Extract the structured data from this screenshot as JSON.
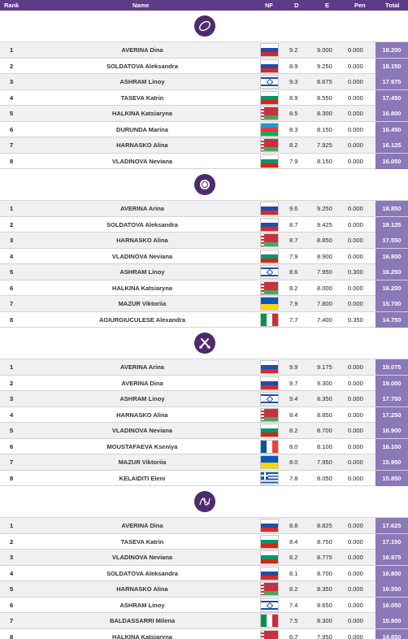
{
  "header": {
    "rank": "Rank",
    "name": "Name",
    "nf": "NF",
    "d": "D",
    "e": "E",
    "pen": "Pen",
    "total": "Total"
  },
  "colors": {
    "header_bg": "#5e3b86",
    "total_bg": "#8a78b8",
    "apparatus_bg": "#4c2b6e"
  },
  "sections": [
    {
      "apparatus_icon": "hoop-icon",
      "rows": [
        {
          "rank": "1",
          "name": "AVERINA Dina",
          "flag": "russia-flag",
          "d": "9.2",
          "e": "9.000",
          "pen": "0.000",
          "total": "18.200"
        },
        {
          "rank": "2",
          "name": "SOLDATOVA Aleksandra",
          "flag": "russia-flag",
          "d": "8.9",
          "e": "9.250",
          "pen": "0.000",
          "total": "18.150"
        },
        {
          "rank": "3",
          "name": "ASHRAM Linoy",
          "flag": "israel-flag",
          "d": "9.3",
          "e": "8.675",
          "pen": "0.000",
          "total": "17.975"
        },
        {
          "rank": "4",
          "name": "TASEVA Katrin",
          "flag": "bulgaria-flag",
          "d": "8.9",
          "e": "8.550",
          "pen": "0.000",
          "total": "17.450"
        },
        {
          "rank": "5",
          "name": "HALKINA Katsiaryna",
          "flag": "belarus-flag",
          "d": "8.5",
          "e": "8.300",
          "pen": "0.000",
          "total": "16.800"
        },
        {
          "rank": "6",
          "name": "DURUNDA Marina",
          "flag": "azerbaijan-flag",
          "d": "8.3",
          "e": "8.150",
          "pen": "0.000",
          "total": "16.450"
        },
        {
          "rank": "7",
          "name": "HARNASKO Alina",
          "flag": "belarus-flag",
          "d": "8.2",
          "e": "7.925",
          "pen": "0.000",
          "total": "16.125"
        },
        {
          "rank": "8",
          "name": "VLADINOVA Neviana",
          "flag": "bulgaria-flag",
          "d": "7.9",
          "e": "8.150",
          "pen": "0.000",
          "total": "16.050"
        }
      ]
    },
    {
      "apparatus_icon": "ball-icon",
      "rows": [
        {
          "rank": "1",
          "name": "AVERINA Arina",
          "flag": "russia-flag",
          "d": "9.6",
          "e": "9.250",
          "pen": "0.000",
          "total": "18.850"
        },
        {
          "rank": "2",
          "name": "SOLDATOVA Aleksandra",
          "flag": "russia-flag",
          "d": "8.7",
          "e": "9.425",
          "pen": "0.000",
          "total": "18.125"
        },
        {
          "rank": "3",
          "name": "HARNASKO Alina",
          "flag": "belarus-flag",
          "d": "8.7",
          "e": "8.850",
          "pen": "0.000",
          "total": "17.550"
        },
        {
          "rank": "4",
          "name": "VLADINOVA Neviana",
          "flag": "bulgaria-flag",
          "d": "7.9",
          "e": "8.900",
          "pen": "0.000",
          "total": "16.800"
        },
        {
          "rank": "5",
          "name": "ASHRAM Linoy",
          "flag": "israel-flag",
          "d": "8.6",
          "e": "7.950",
          "pen": "0.300",
          "total": "16.250"
        },
        {
          "rank": "6",
          "name": "HALKINA Katsiaryna",
          "flag": "belarus-flag",
          "d": "8.2",
          "e": "8.000",
          "pen": "0.000",
          "total": "16.200"
        },
        {
          "rank": "7",
          "name": "MAZUR Viktoriia",
          "flag": "ukraine-flag",
          "d": "7.9",
          "e": "7.800",
          "pen": "0.000",
          "total": "15.700"
        },
        {
          "rank": "8",
          "name": "AGIURGIUCULESE Alexandra",
          "flag": "italy-flag",
          "d": "7.7",
          "e": "7.400",
          "pen": "0.350",
          "total": "14.750"
        }
      ]
    },
    {
      "apparatus_icon": "clubs-icon",
      "rows": [
        {
          "rank": "1",
          "name": "AVERINA Arina",
          "flag": "russia-flag",
          "d": "9.9",
          "e": "9.175",
          "pen": "0.000",
          "total": "19.075"
        },
        {
          "rank": "2",
          "name": "AVERINA Dina",
          "flag": "russia-flag",
          "d": "9.7",
          "e": "9.300",
          "pen": "0.000",
          "total": "19.000"
        },
        {
          "rank": "3",
          "name": "ASHRAM Linoy",
          "flag": "israel-flag",
          "d": "9.4",
          "e": "8.350",
          "pen": "0.000",
          "total": "17.750"
        },
        {
          "rank": "4",
          "name": "HARNASKO Alina",
          "flag": "belarus-flag",
          "d": "8.4",
          "e": "8.850",
          "pen": "0.000",
          "total": "17.250"
        },
        {
          "rank": "5",
          "name": "VLADINOVA Neviana",
          "flag": "bulgaria-flag",
          "d": "8.2",
          "e": "8.700",
          "pen": "0.000",
          "total": "16.900"
        },
        {
          "rank": "6",
          "name": "MOUSTAFAEVA Kseniya",
          "flag": "france-flag",
          "d": "8.0",
          "e": "8.100",
          "pen": "0.000",
          "total": "16.100"
        },
        {
          "rank": "7",
          "name": "MAZUR Viktoriia",
          "flag": "ukraine-flag",
          "d": "8.0",
          "e": "7.950",
          "pen": "0.000",
          "total": "15.950"
        },
        {
          "rank": "8",
          "name": "KELAIDITI Eleni",
          "flag": "greece-flag",
          "d": "7.8",
          "e": "8.050",
          "pen": "0.000",
          "total": "15.850"
        }
      ]
    },
    {
      "apparatus_icon": "ribbon-icon",
      "rows": [
        {
          "rank": "1",
          "name": "AVERINA Dina",
          "flag": "russia-flag",
          "d": "8.8",
          "e": "8.825",
          "pen": "0.000",
          "total": "17.625"
        },
        {
          "rank": "2",
          "name": "TASEVA Katrin",
          "flag": "bulgaria-flag",
          "d": "8.4",
          "e": "8.750",
          "pen": "0.000",
          "total": "17.150"
        },
        {
          "rank": "3",
          "name": "VLADINOVA Neviana",
          "flag": "bulgaria-flag",
          "d": "8.2",
          "e": "8.775",
          "pen": "0.000",
          "total": "16.975"
        },
        {
          "rank": "4",
          "name": "SOLDATOVA Aleksandra",
          "flag": "russia-flag",
          "d": "8.1",
          "e": "8.700",
          "pen": "0.000",
          "total": "16.800"
        },
        {
          "rank": "5",
          "name": "HARNASKO Alina",
          "flag": "belarus-flag",
          "d": "8.2",
          "e": "8.350",
          "pen": "0.000",
          "total": "16.550"
        },
        {
          "rank": "6",
          "name": "ASHRAM Linoy",
          "flag": "israel-flag",
          "d": "7.4",
          "e": "8.650",
          "pen": "0.000",
          "total": "16.050"
        },
        {
          "rank": "7",
          "name": "BALDASSARRI Milena",
          "flag": "italy-flag",
          "d": "7.5",
          "e": "8.300",
          "pen": "0.000",
          "total": "15.800"
        },
        {
          "rank": "8",
          "name": "HALKINA Katsiaryna",
          "flag": "belarus-flag",
          "d": "6.7",
          "e": "7.950",
          "pen": "0.000",
          "total": "14.650"
        }
      ]
    }
  ]
}
